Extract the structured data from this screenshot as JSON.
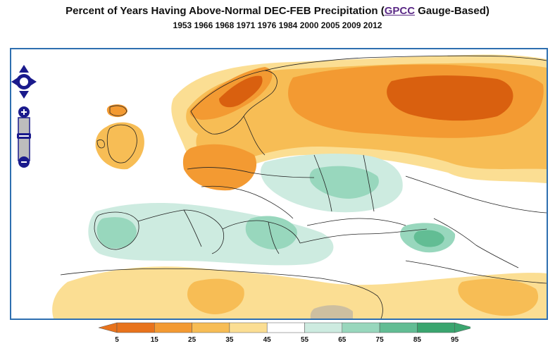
{
  "header": {
    "title_prefix": "Percent of Years Having Above-Normal DEC-FEB Precipitation (",
    "title_link": "GPCC",
    "title_suffix": " Gauge-Based)",
    "years": "1953 1966 1968 1971 1976 1984 2000 2005 2009 2012"
  },
  "legend": {
    "ticks": [
      "5",
      "15",
      "25",
      "35",
      "45",
      "55",
      "65",
      "75",
      "85",
      "95"
    ],
    "colors": [
      "#e8731c",
      "#f39a32",
      "#f7bd55",
      "#fbde93",
      "#ffffff",
      "#cdebe0",
      "#98d7bd",
      "#62bd94",
      "#3aa56f"
    ],
    "arrow_low": "#e8731c",
    "arrow_high": "#3aa56f"
  },
  "palette": {
    "deep_orange": "#d9600f",
    "orange": "#f39a32",
    "light_orange": "#f7bd55",
    "pale_yellow": "#fbde93",
    "pale_green": "#cdebe0",
    "mid_green": "#98d7bd",
    "green": "#62bd94",
    "tan": "#cdbfa0",
    "frame": "#2e6fb0",
    "nav": "#1a1a8c"
  }
}
